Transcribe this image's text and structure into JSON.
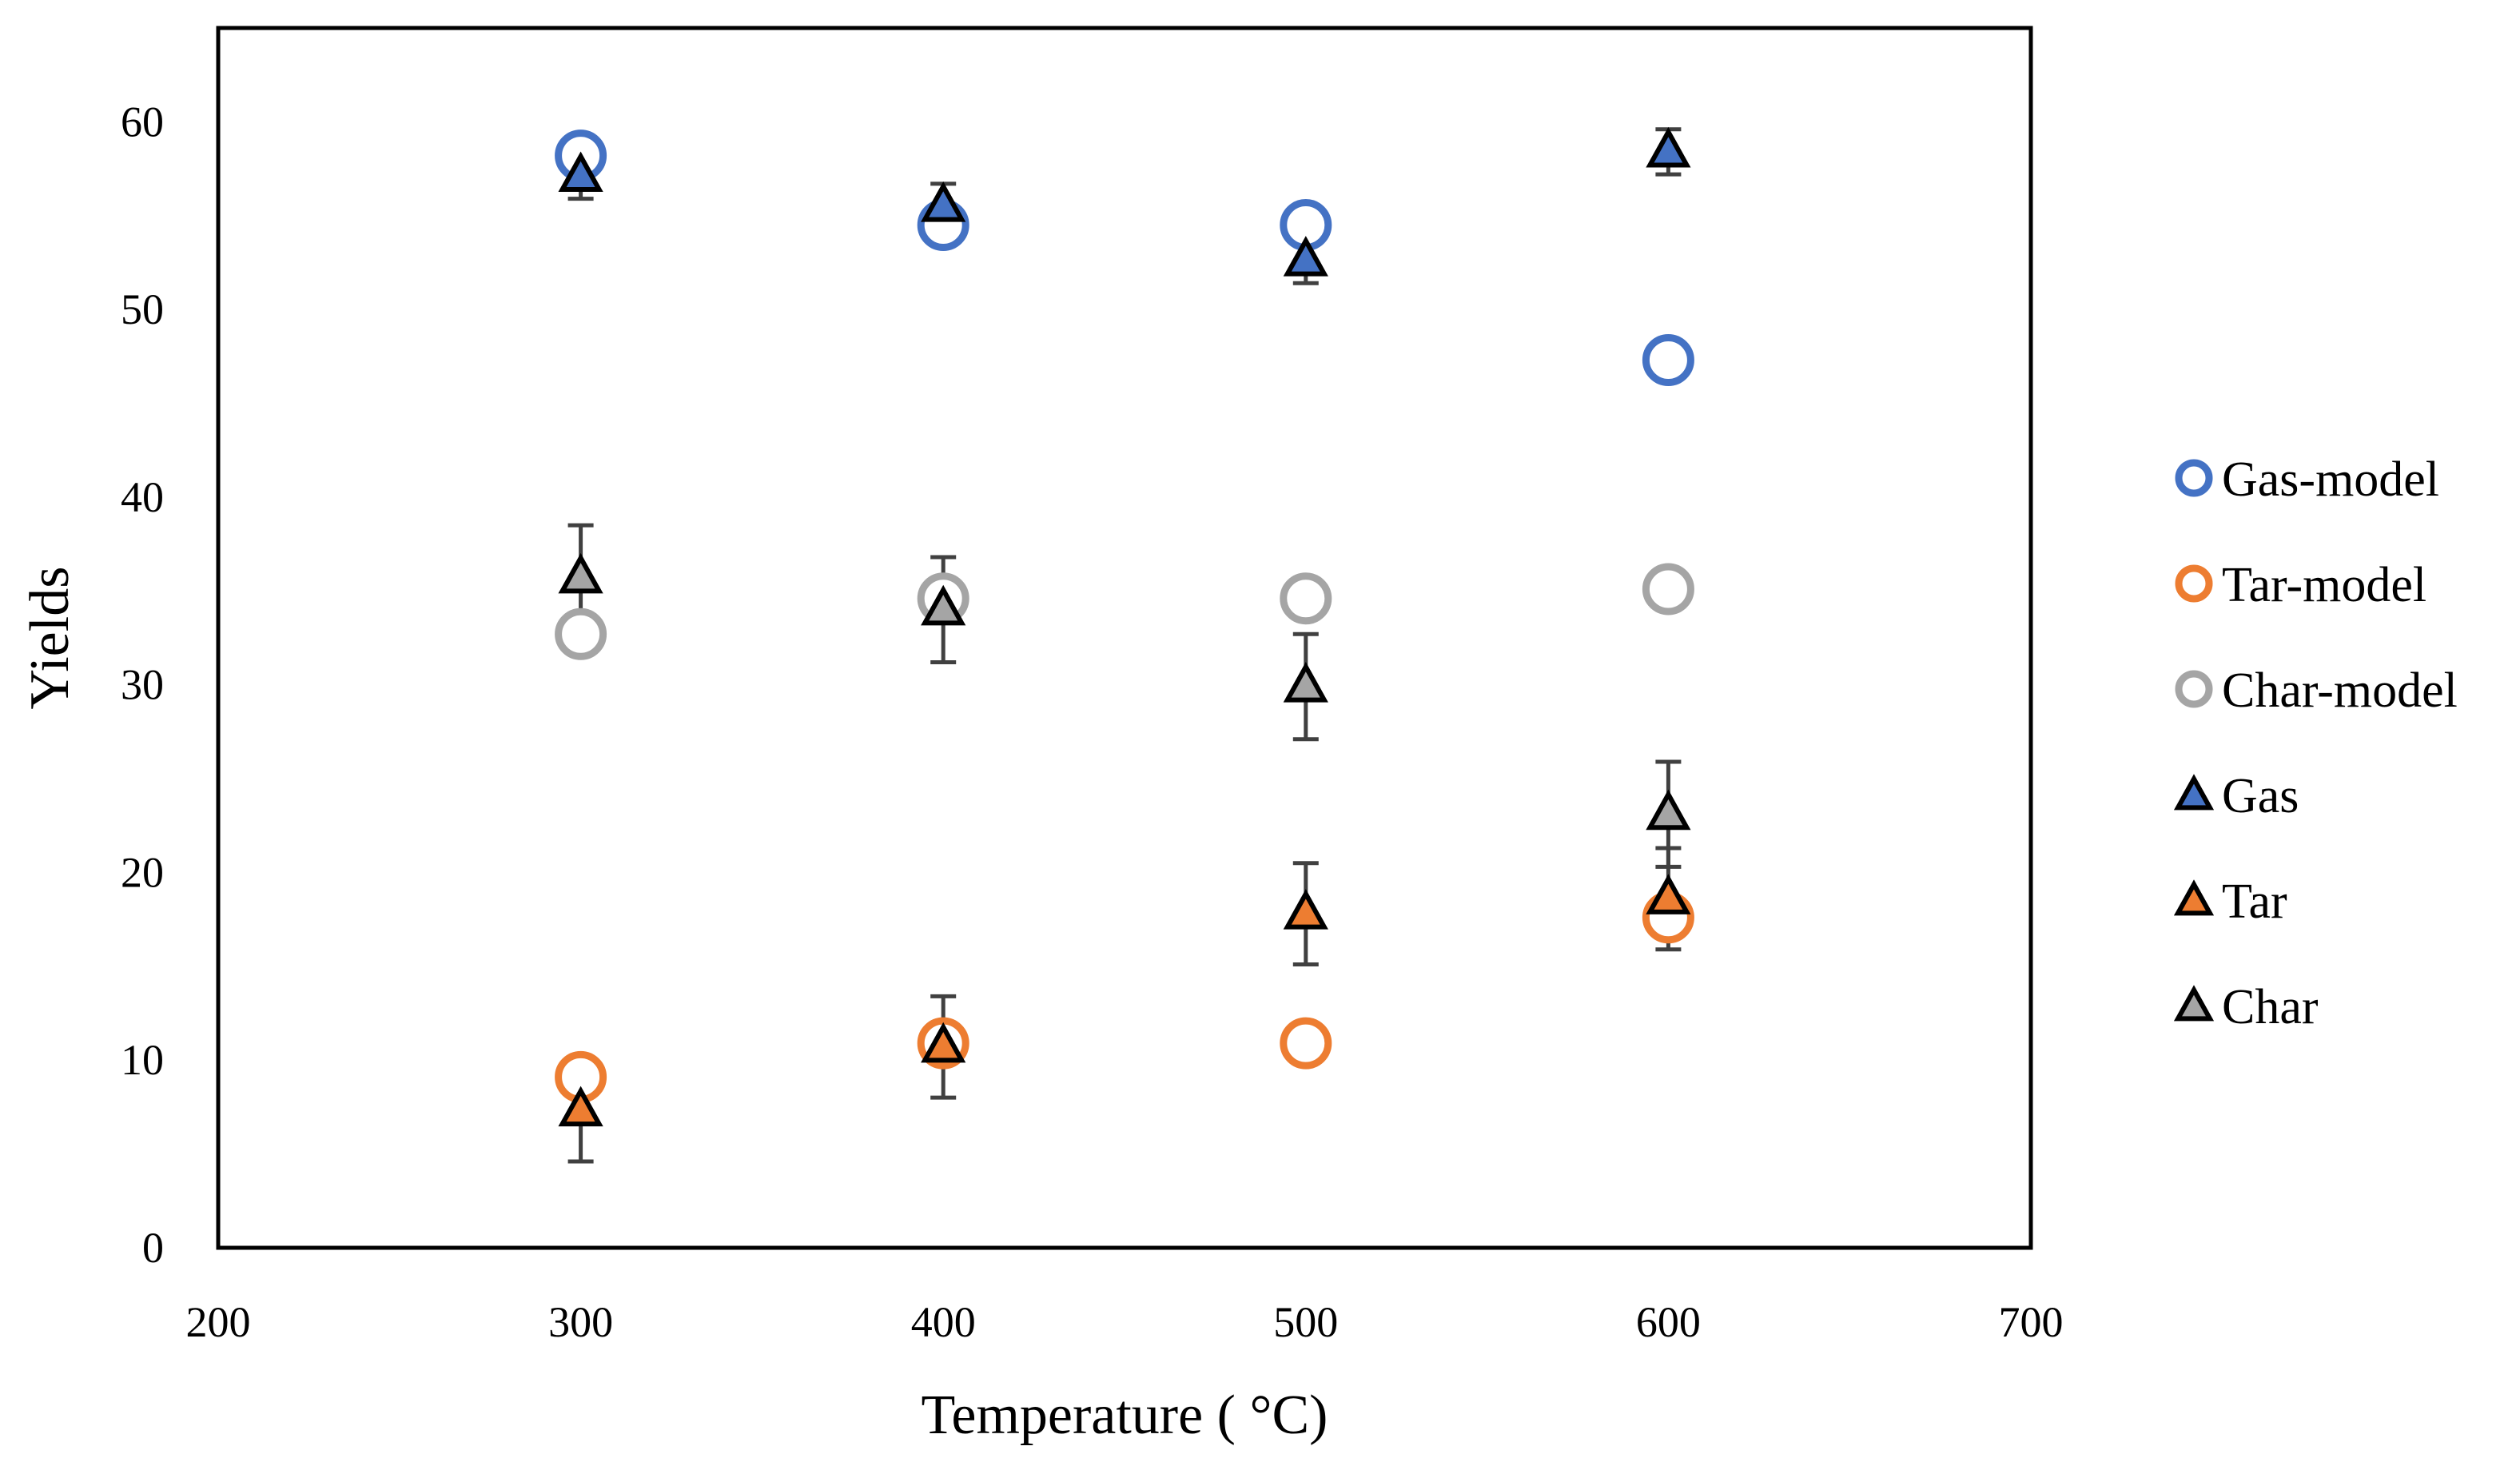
{
  "chart_data": {
    "type": "scatter",
    "title": "",
    "xlabel": "Temperature ( °C)",
    "ylabel": "Yields",
    "xlim": [
      200,
      700
    ],
    "ylim": [
      0,
      65
    ],
    "xticks": [
      200,
      300,
      400,
      500,
      600,
      700
    ],
    "yticks": [
      0,
      10,
      20,
      30,
      40,
      50,
      60
    ],
    "xtick_labels": [
      "200",
      "300",
      "400",
      "500",
      "600",
      "700"
    ],
    "ytick_labels": [
      "0",
      "10",
      "20",
      "30",
      "40",
      "50",
      "60"
    ],
    "grid": false,
    "legend_position": "right",
    "series": [
      {
        "name": "Gas-model",
        "marker": "circle",
        "color": "#4472c4",
        "x": [
          300,
          400,
          500,
          600
        ],
        "y": [
          58.2,
          54.5,
          54.5,
          47.3
        ],
        "err": null
      },
      {
        "name": "Tar-model",
        "marker": "circle",
        "color": "#ed7d31",
        "x": [
          300,
          400,
          500,
          600
        ],
        "y": [
          9.1,
          10.9,
          10.9,
          17.6
        ],
        "err": null
      },
      {
        "name": "Char-model",
        "marker": "circle",
        "color": "#a5a5a5",
        "x": [
          300,
          400,
          500,
          600
        ],
        "y": [
          32.7,
          34.6,
          34.6,
          35.1
        ],
        "err": null
      },
      {
        "name": "Gas",
        "marker": "triangle",
        "color": "#4472c4",
        "x": [
          300,
          400,
          500,
          600
        ],
        "y": [
          57.1,
          55.5,
          52.6,
          58.4
        ],
        "err": [
          1.2,
          1.2,
          1.2,
          1.2
        ]
      },
      {
        "name": "Tar",
        "marker": "triangle",
        "color": "#ed7d31",
        "x": [
          300,
          400,
          500,
          600
        ],
        "y": [
          7.3,
          10.7,
          17.8,
          18.6
        ],
        "err": [
          2.7,
          2.7,
          2.7,
          2.7
        ]
      },
      {
        "name": "Char",
        "marker": "triangle",
        "color": "#a5a5a5",
        "x": [
          300,
          400,
          500,
          600
        ],
        "y": [
          35.7,
          34.0,
          29.9,
          23.1
        ],
        "err": [
          2.8,
          2.8,
          2.8,
          2.8
        ]
      }
    ],
    "colors": {
      "error_bar": "#404040",
      "marker_edge": "#000000",
      "axis": "#000000"
    }
  }
}
